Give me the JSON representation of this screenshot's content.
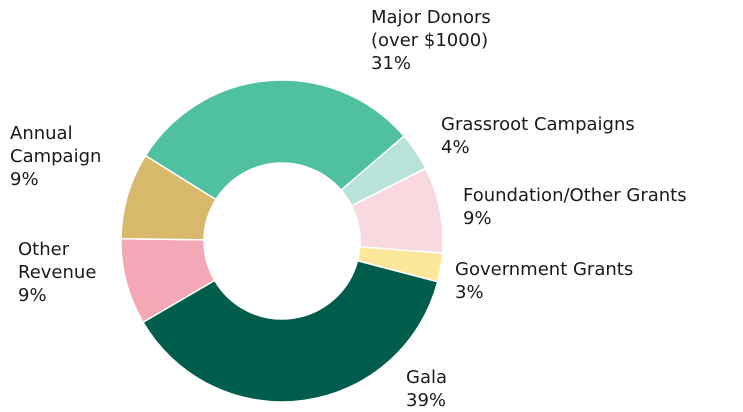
{
  "chart_data": {
    "type": "donut",
    "categories": [
      "Major Donors (over $1000)",
      "Grassroot Campaigns",
      "Foundation/Other Grants",
      "Government Grants",
      "Gala",
      "Other Revenue",
      "Annual Campaign"
    ],
    "values": [
      31,
      4,
      9,
      3,
      39,
      9,
      9
    ],
    "value_labels": [
      "31%",
      "4%",
      "9%",
      "3%",
      "39%",
      "9%",
      "9%"
    ],
    "colors": [
      "#4fc1a1",
      "#b7e3d9",
      "#f7d9df",
      "#fce79a",
      "#005c4b",
      "#f4a7b4",
      "#d8b86a"
    ]
  }
}
